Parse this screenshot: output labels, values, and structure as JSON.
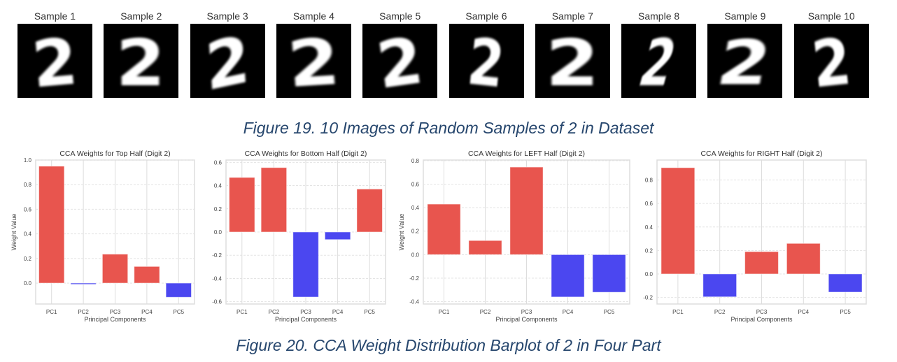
{
  "samples": [
    {
      "title": "Sample 1"
    },
    {
      "title": "Sample 2"
    },
    {
      "title": "Sample 3"
    },
    {
      "title": "Sample 4"
    },
    {
      "title": "Sample 5"
    },
    {
      "title": "Sample 6"
    },
    {
      "title": "Sample 7"
    },
    {
      "title": "Sample 8"
    },
    {
      "title": "Sample 9"
    },
    {
      "title": "Sample 10"
    }
  ],
  "sample_digit": "2",
  "figure19_caption": "Figure 19. 10 Images of Random Samples of 2 in Dataset",
  "figure20_caption": "Figure 20. CCA Weight Distribution Barplot of 2 in Four Part",
  "colors": {
    "positive": "#e8554e",
    "negative": "#4b47f0",
    "caption": "#26466d"
  },
  "chart_data": [
    {
      "type": "bar",
      "title": "CCA Weights for Top Half (Digit 2)",
      "xlabel": "Principal Components",
      "ylabel": "Weight Value",
      "categories": [
        "PC1",
        "PC2",
        "PC3",
        "PC4",
        "PC5"
      ],
      "values": [
        0.95,
        -0.01,
        0.235,
        0.135,
        -0.115
      ],
      "ylim": [
        -0.17,
        1.0
      ],
      "yticks": [
        0.0,
        0.2,
        0.4,
        0.6,
        0.8,
        1.0
      ],
      "grid": true
    },
    {
      "type": "bar",
      "title": "CCA Weights for Bottom Half (Digit 2)",
      "xlabel": "Principal Components",
      "ylabel": "",
      "categories": [
        "PC1",
        "PC2",
        "PC3",
        "PC4",
        "PC5"
      ],
      "values": [
        0.47,
        0.555,
        -0.56,
        -0.065,
        0.37
      ],
      "ylim": [
        -0.62,
        0.62
      ],
      "yticks": [
        -0.6,
        -0.4,
        -0.2,
        0.0,
        0.2,
        0.4,
        0.6
      ],
      "grid": true
    },
    {
      "type": "bar",
      "title": "CCA Weights for LEFT Half (Digit 2)",
      "xlabel": "Principal Components",
      "ylabel": "Weight Value",
      "categories": [
        "PC1",
        "PC2",
        "PC3",
        "PC4",
        "PC5"
      ],
      "values": [
        0.43,
        0.12,
        0.745,
        -0.36,
        -0.32
      ],
      "ylim": [
        -0.42,
        0.805
      ],
      "yticks": [
        -0.4,
        -0.2,
        0.0,
        0.2,
        0.4,
        0.6,
        0.8
      ],
      "grid": true
    },
    {
      "type": "bar",
      "title": "CCA Weights for RIGHT Half (Digit 2)",
      "xlabel": "Principal Components",
      "ylabel": "",
      "categories": [
        "PC1",
        "PC2",
        "PC3",
        "PC4",
        "PC5"
      ],
      "values": [
        0.905,
        -0.195,
        0.19,
        0.26,
        -0.155
      ],
      "ylim": [
        -0.256,
        0.97
      ],
      "yticks": [
        -0.2,
        0.0,
        0.2,
        0.4,
        0.6,
        0.8
      ],
      "grid": true
    }
  ]
}
